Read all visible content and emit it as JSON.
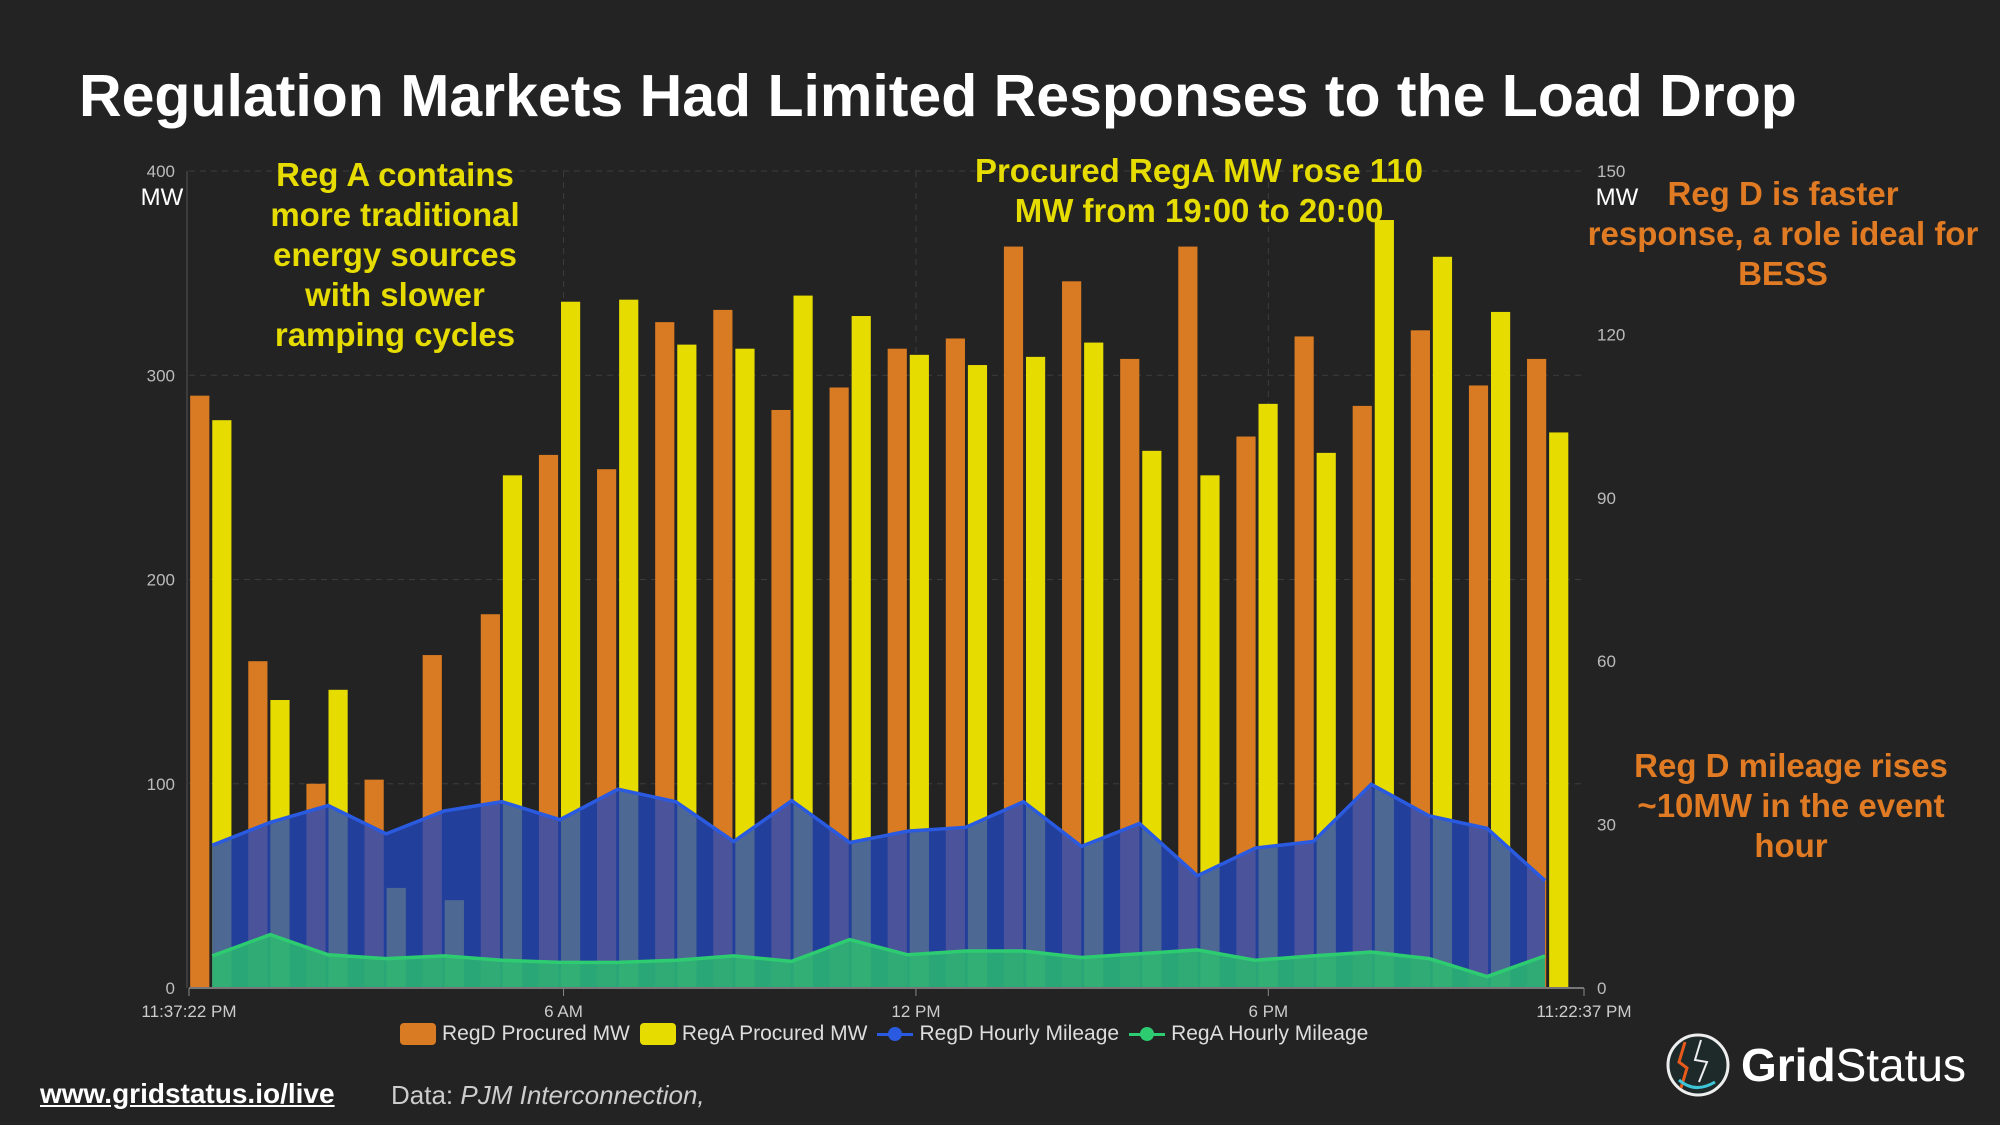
{
  "title": "Regulation Markets Had Limited Responses to the Load Drop",
  "annotations": {
    "rega_note": "Reg A contains\nmore traditional\nenergy sources\nwith slower\nramping cycles",
    "procured_note": "Procured RegA MW rose 110\nMW from 19:00 to 20:00",
    "regd_fast_note": "Reg D is faster\nresponse, a role ideal for\nBESS",
    "regd_mileage_note": "Reg D mileage rises\n~10MW in the event\nhour"
  },
  "colors": {
    "regd_procured": "#d97b22",
    "rega_procured": "#e6dc00",
    "regd_mileage": "#2a5ae0",
    "rega_mileage": "#2ecc71",
    "annotation_yellow": "#e6dc00",
    "annotation_orange": "#e07b24"
  },
  "chart_data": {
    "type": "bar",
    "left_axis": {
      "unit": "MW",
      "ylim": [
        0,
        400
      ],
      "ticks": [
        "0",
        "100",
        "200",
        "300",
        "400"
      ]
    },
    "right_axis": {
      "unit": "MW",
      "ylim": [
        0,
        150
      ],
      "ticks": [
        "0",
        "30",
        "60",
        "90",
        "120",
        "150"
      ]
    },
    "x_tick_labels": [
      "11:37:22 PM",
      "6 AM",
      "12 PM",
      "6 PM",
      "11:22:37 PM"
    ],
    "grid": true,
    "legend_position": "bottom",
    "series": [
      {
        "name": "RegD Procured MW",
        "type": "bar",
        "axis": "left",
        "values": [
          290,
          160,
          100,
          102,
          163,
          183,
          261,
          254,
          326,
          332,
          283,
          294,
          313,
          318,
          363,
          346,
          308,
          363,
          270,
          319,
          285,
          322,
          295,
          308
        ]
      },
      {
        "name": "RegA Procured MW",
        "type": "bar",
        "axis": "left",
        "values": [
          278,
          141,
          146,
          49,
          43,
          251,
          336,
          337,
          315,
          313,
          339,
          329,
          310,
          305,
          309,
          316,
          263,
          251,
          286,
          262,
          376,
          358,
          331,
          272
        ]
      },
      {
        "name": "RegD Hourly Mileage",
        "type": "area",
        "axis": "right",
        "values": [
          26.2,
          30.4,
          33.5,
          28.3,
          32.5,
          34.2,
          30.9,
          36.5,
          34.2,
          26.9,
          34.4,
          26.7,
          28.8,
          29.5,
          34.2,
          26.0,
          30.2,
          20.6,
          25.7,
          26.9,
          37.4,
          31.6,
          29.3,
          19.7
        ]
      },
      {
        "name": "RegA Hourly Mileage",
        "type": "area",
        "axis": "right",
        "values": [
          5.9,
          9.8,
          6.1,
          5.4,
          5.9,
          5.1,
          4.7,
          4.7,
          5.1,
          5.9,
          4.9,
          8.9,
          6.1,
          6.8,
          6.8,
          5.6,
          6.3,
          7.0,
          5.1,
          5.9,
          6.6,
          5.4,
          2.1,
          5.9
        ]
      }
    ]
  },
  "footer": {
    "link": "www.gridstatus.io/live",
    "source_label": "Data:",
    "source": "PJM Interconnection,"
  },
  "logo": {
    "word1": "Grid",
    "word2": "Status"
  }
}
